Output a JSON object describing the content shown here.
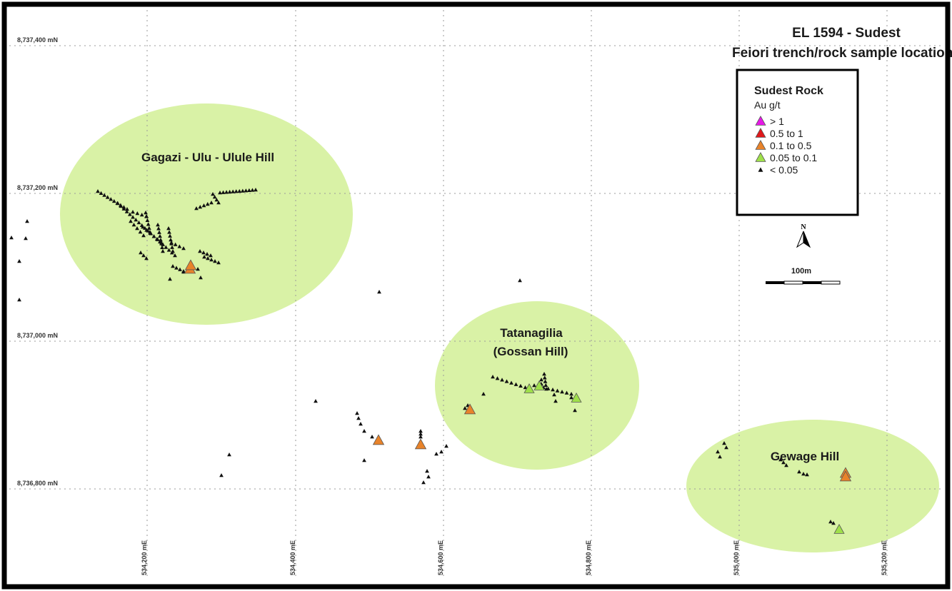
{
  "map": {
    "title_line1": "EL 1594 - Sudest",
    "title_line2": "Feiori trench/rock sample locations",
    "grid_northings": [
      "8,737,400 mN",
      "8,737,200 mN",
      "8,737,000 mN",
      "8,736,800 mN"
    ],
    "grid_eastings": [
      "534,200 mE",
      "534,400 mE",
      "534,600 mE",
      "534,800 mE",
      "535,000 mE",
      "535,200 mE"
    ],
    "areas": [
      {
        "name": "Gagazi - Ulu - Ulule Hill",
        "lines": [
          "Gagazi - Ulu - Ulule Hill"
        ]
      },
      {
        "name": "Tatanagilia (Gossan Hill)",
        "lines": [
          "Tatanagilia",
          "(Gossan Hill)"
        ]
      },
      {
        "name": "Gewage Hill",
        "lines": [
          "Gewage Hill"
        ]
      }
    ],
    "highlight_color": "#d9f2a6"
  },
  "legend": {
    "title": "Sudest Rock",
    "subtitle": "Au g/t",
    "classes": [
      {
        "label": "> 1",
        "color": "#e619e6"
      },
      {
        "label": "0.5 to 1",
        "color": "#e0191b"
      },
      {
        "label": "0.1 to 0.5",
        "color": "#e8832a"
      },
      {
        "label": "0.05 to 0.1",
        "color": "#9fe04a"
      },
      {
        "label": "< 0.05",
        "color": "#111111"
      }
    ]
  },
  "north_arrow": {
    "label": "N"
  },
  "scale_bar": {
    "label": "100m"
  }
}
